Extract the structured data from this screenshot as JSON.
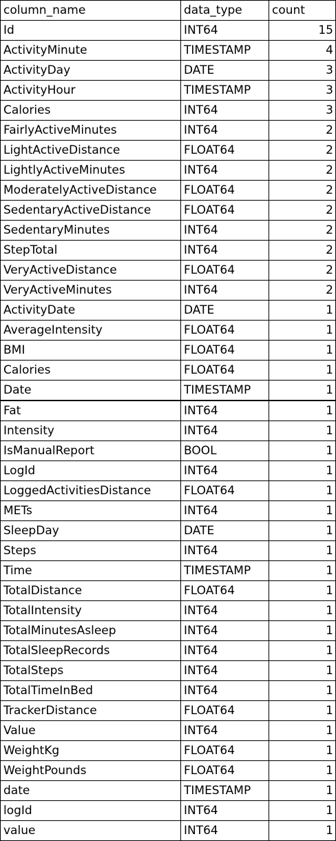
{
  "table": {
    "headers": {
      "column_name": "column_name",
      "data_type": "data_type",
      "count": "count"
    },
    "rows": [
      {
        "column_name": "Id",
        "data_type": "INT64",
        "count": "15"
      },
      {
        "column_name": "ActivityMinute",
        "data_type": "TIMESTAMP",
        "count": "4"
      },
      {
        "column_name": "ActivityDay",
        "data_type": "DATE",
        "count": "3"
      },
      {
        "column_name": "ActivityHour",
        "data_type": "TIMESTAMP",
        "count": "3"
      },
      {
        "column_name": "Calories",
        "data_type": "INT64",
        "count": "3"
      },
      {
        "column_name": "FairlyActiveMinutes",
        "data_type": "INT64",
        "count": "2"
      },
      {
        "column_name": "LightActiveDistance",
        "data_type": "FLOAT64",
        "count": "2"
      },
      {
        "column_name": "LightlyActiveMinutes",
        "data_type": "INT64",
        "count": "2"
      },
      {
        "column_name": "ModeratelyActiveDistance",
        "data_type": "FLOAT64",
        "count": "2"
      },
      {
        "column_name": "SedentaryActiveDistance",
        "data_type": "FLOAT64",
        "count": "2"
      },
      {
        "column_name": "SedentaryMinutes",
        "data_type": "INT64",
        "count": "2"
      },
      {
        "column_name": "StepTotal",
        "data_type": "INT64",
        "count": "2"
      },
      {
        "column_name": "VeryActiveDistance",
        "data_type": "FLOAT64",
        "count": "2"
      },
      {
        "column_name": "VeryActiveMinutes",
        "data_type": "INT64",
        "count": "2"
      },
      {
        "column_name": "ActivityDate",
        "data_type": "DATE",
        "count": "1"
      },
      {
        "column_name": "AverageIntensity",
        "data_type": "FLOAT64",
        "count": "1"
      },
      {
        "column_name": "BMI",
        "data_type": "FLOAT64",
        "count": "1"
      },
      {
        "column_name": "Calories",
        "data_type": "FLOAT64",
        "count": "1"
      },
      {
        "column_name": "Date",
        "data_type": "TIMESTAMP",
        "count": "1"
      },
      {
        "column_name": "Fat",
        "data_type": "INT64",
        "count": "1"
      },
      {
        "column_name": "Intensity",
        "data_type": "INT64",
        "count": "1"
      },
      {
        "column_name": "IsManualReport",
        "data_type": "BOOL",
        "count": "1"
      },
      {
        "column_name": "LogId",
        "data_type": "INT64",
        "count": "1"
      },
      {
        "column_name": "LoggedActivitiesDistance",
        "data_type": "FLOAT64",
        "count": "1"
      },
      {
        "column_name": "METs",
        "data_type": "INT64",
        "count": "1"
      },
      {
        "column_name": "SleepDay",
        "data_type": "DATE",
        "count": "1"
      },
      {
        "column_name": "Steps",
        "data_type": "INT64",
        "count": "1"
      },
      {
        "column_name": "Time",
        "data_type": "TIMESTAMP",
        "count": "1"
      },
      {
        "column_name": "TotalDistance",
        "data_type": "FLOAT64",
        "count": "1"
      },
      {
        "column_name": "TotalIntensity",
        "data_type": "INT64",
        "count": "1"
      },
      {
        "column_name": "TotalMinutesAsleep",
        "data_type": "INT64",
        "count": "1"
      },
      {
        "column_name": "TotalSleepRecords",
        "data_type": "INT64",
        "count": "1"
      },
      {
        "column_name": "TotalSteps",
        "data_type": "INT64",
        "count": "1"
      },
      {
        "column_name": "TotalTimeInBed",
        "data_type": "INT64",
        "count": "1"
      },
      {
        "column_name": "TrackerDistance",
        "data_type": "FLOAT64",
        "count": "1"
      },
      {
        "column_name": "Value",
        "data_type": "INT64",
        "count": "1"
      },
      {
        "column_name": "WeightKg",
        "data_type": "FLOAT64",
        "count": "1"
      },
      {
        "column_name": "WeightPounds",
        "data_type": "FLOAT64",
        "count": "1"
      },
      {
        "column_name": "date",
        "data_type": "TIMESTAMP",
        "count": "1"
      },
      {
        "column_name": "logId",
        "data_type": "INT64",
        "count": "1"
      },
      {
        "column_name": "value",
        "data_type": "INT64",
        "count": "1"
      }
    ]
  }
}
